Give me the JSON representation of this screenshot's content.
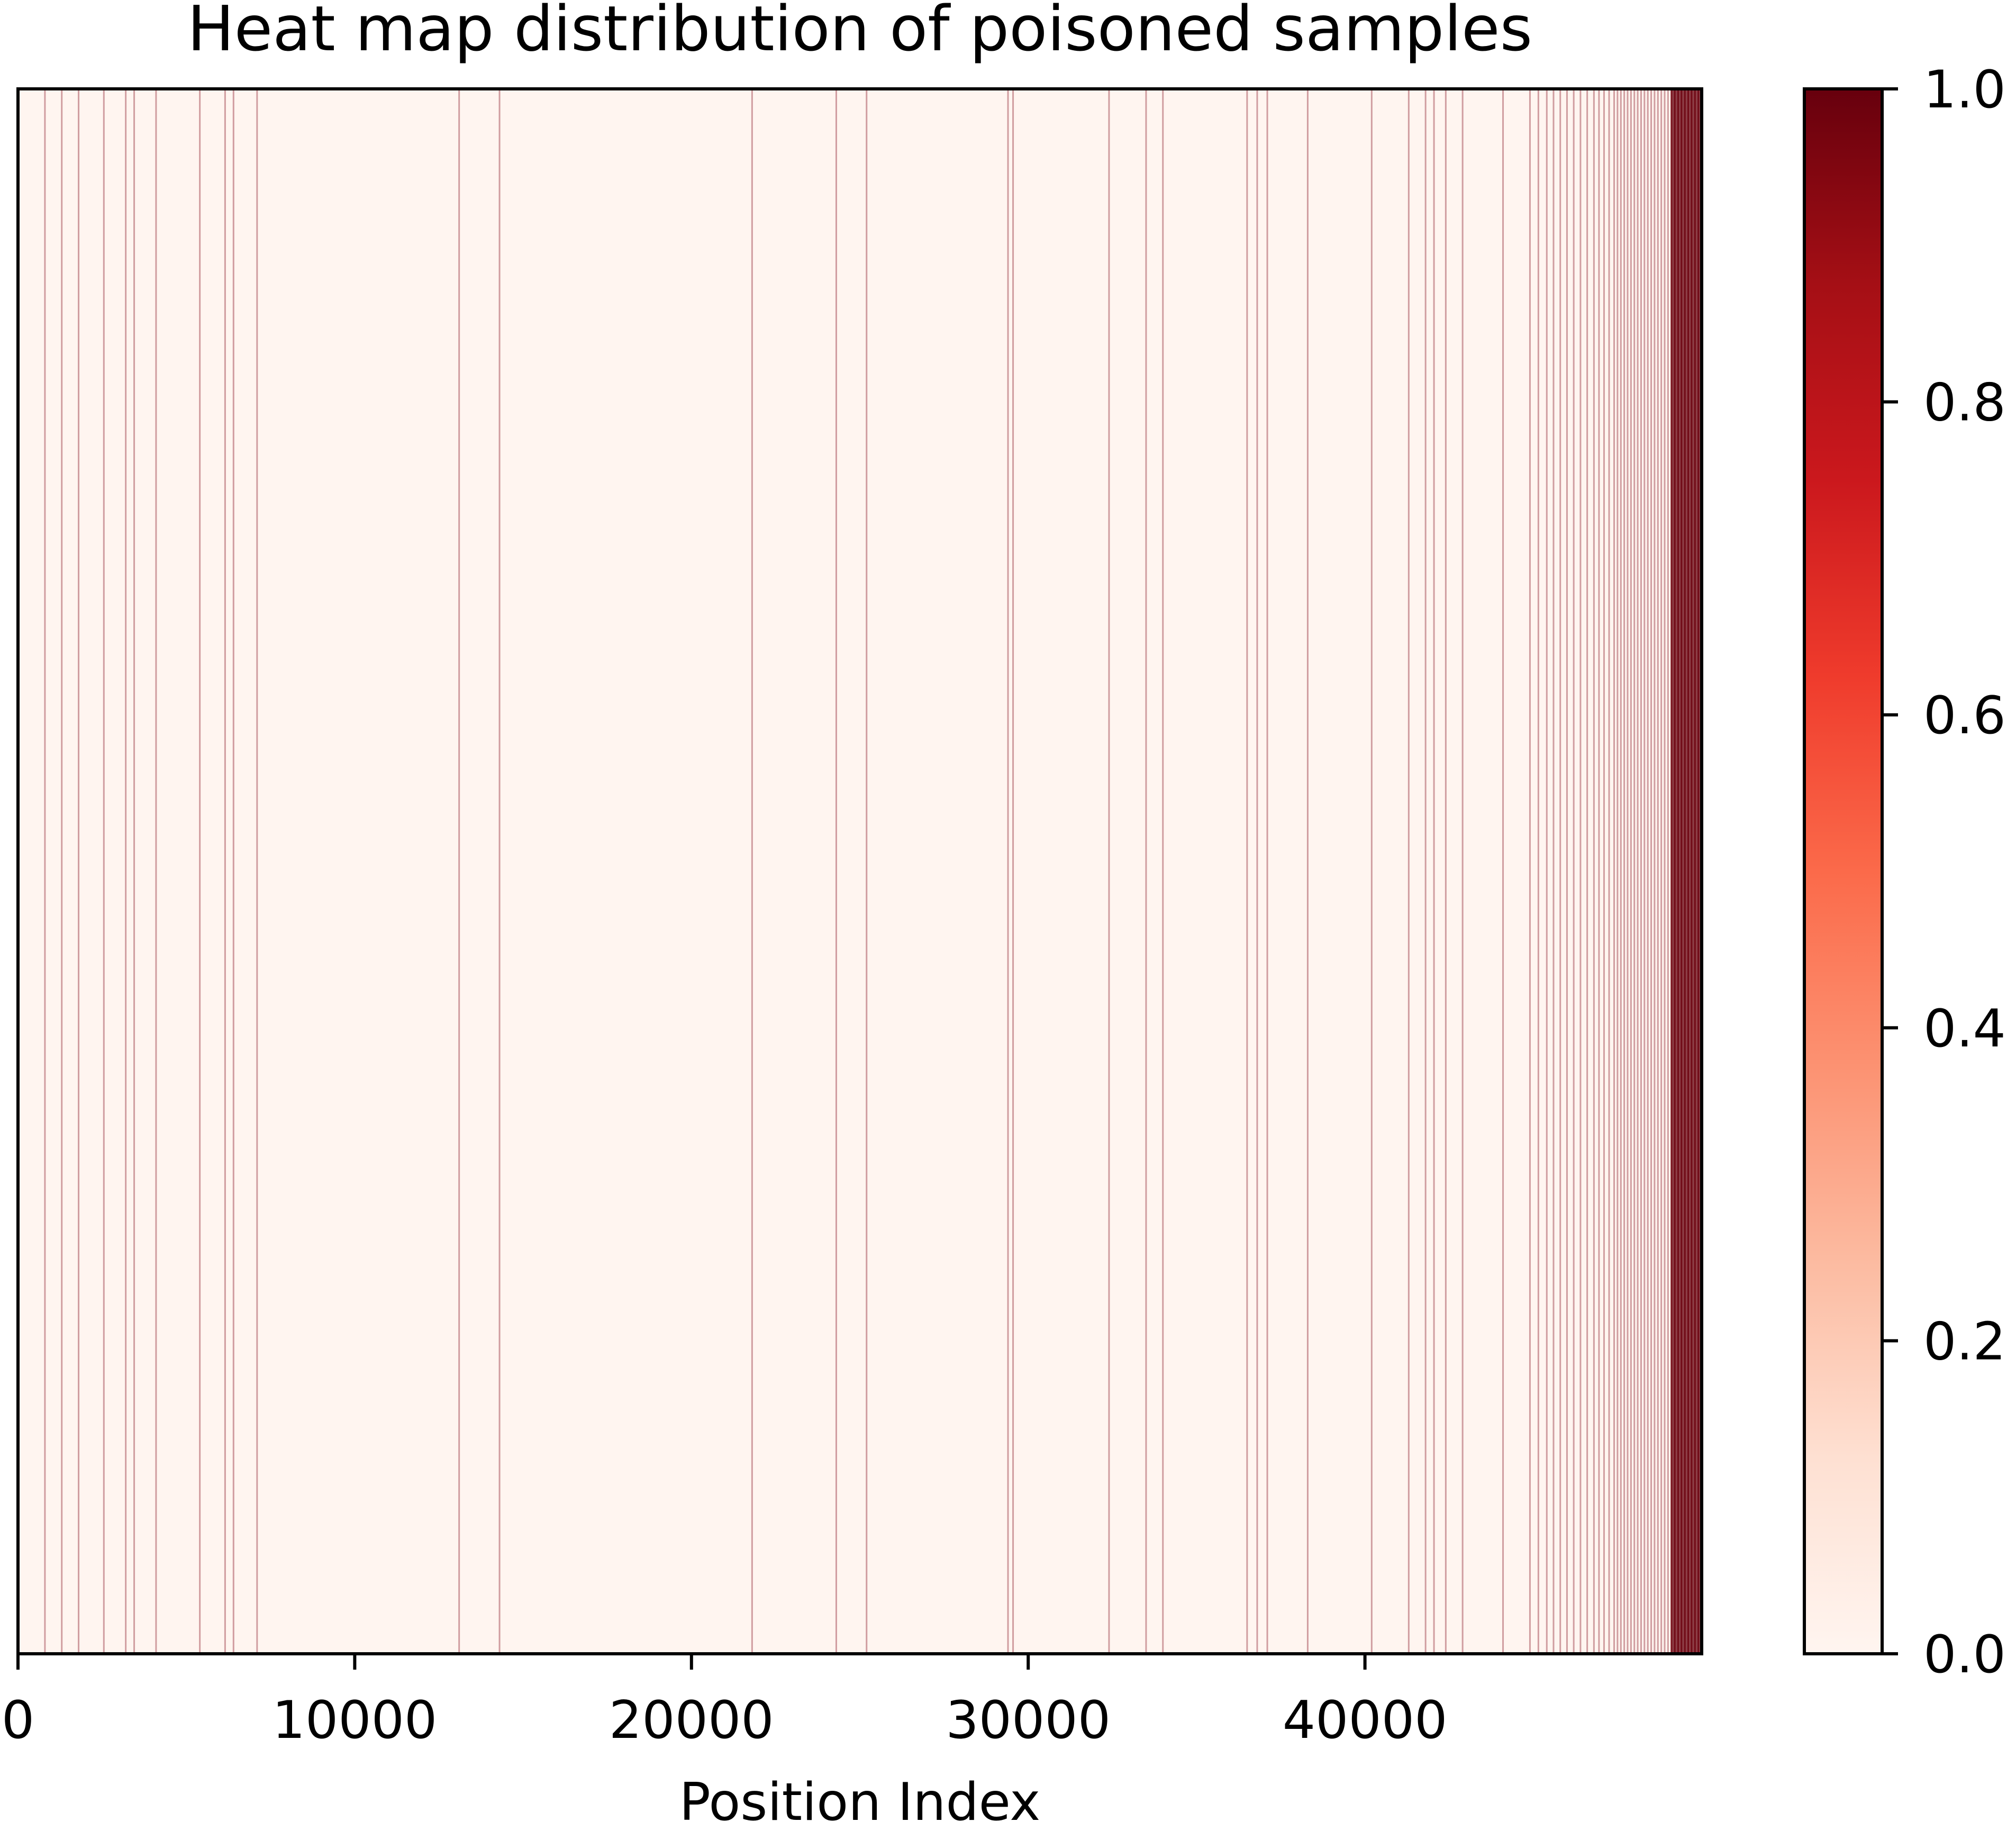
{
  "chart_data": {
    "type": "heatmap",
    "title": "Heat map distribution of poisoned samples",
    "xlabel": "Position Index",
    "ylabel": "",
    "xlim": [
      0,
      50000
    ],
    "x_ticks": [
      0,
      10000,
      20000,
      30000,
      40000
    ],
    "x_tick_labels": [
      "0",
      "10000",
      "20000",
      "30000",
      "40000"
    ],
    "colorbar": {
      "colormap": "Reds",
      "vmin": 0.0,
      "vmax": 1.0,
      "ticks": [
        0.0,
        0.2,
        0.4,
        0.6,
        0.8,
        1.0
      ],
      "tick_labels": [
        "0.0",
        "0.2",
        "0.4",
        "0.6",
        "0.8",
        "1.0"
      ]
    },
    "colormap_stops": [
      "#fff5f0",
      "#fee0d2",
      "#fcbba1",
      "#fc9272",
      "#fb6a4a",
      "#ef3b2c",
      "#cb181d",
      "#a50f15",
      "#67000d"
    ],
    "background_value": 0.0,
    "poisoned_positions": [
      800,
      1300,
      1800,
      2550,
      3200,
      3450,
      4100,
      5400,
      6150,
      6400,
      7100,
      13100,
      14300,
      21800,
      24300,
      25200,
      29400,
      29550,
      32400,
      33500,
      34000,
      36500,
      36800,
      37100,
      38300,
      40200,
      41300,
      41800,
      42050,
      42400,
      42900,
      44100,
      44900,
      45150,
      45400,
      45600,
      45800,
      46000,
      46200,
      46400,
      46600,
      46800,
      46950,
      47100,
      47250,
      47400,
      47500,
      47600,
      47700,
      47800,
      47900,
      48000,
      48100,
      48200,
      48300,
      48400,
      48500,
      48600,
      48700,
      48800,
      48900,
      49000,
      49100,
      49200,
      49300,
      49400,
      49500,
      49600,
      49700,
      49800,
      49900
    ],
    "dense_band_range": [
      49100,
      50000
    ],
    "dense_band_value": 1.0
  }
}
